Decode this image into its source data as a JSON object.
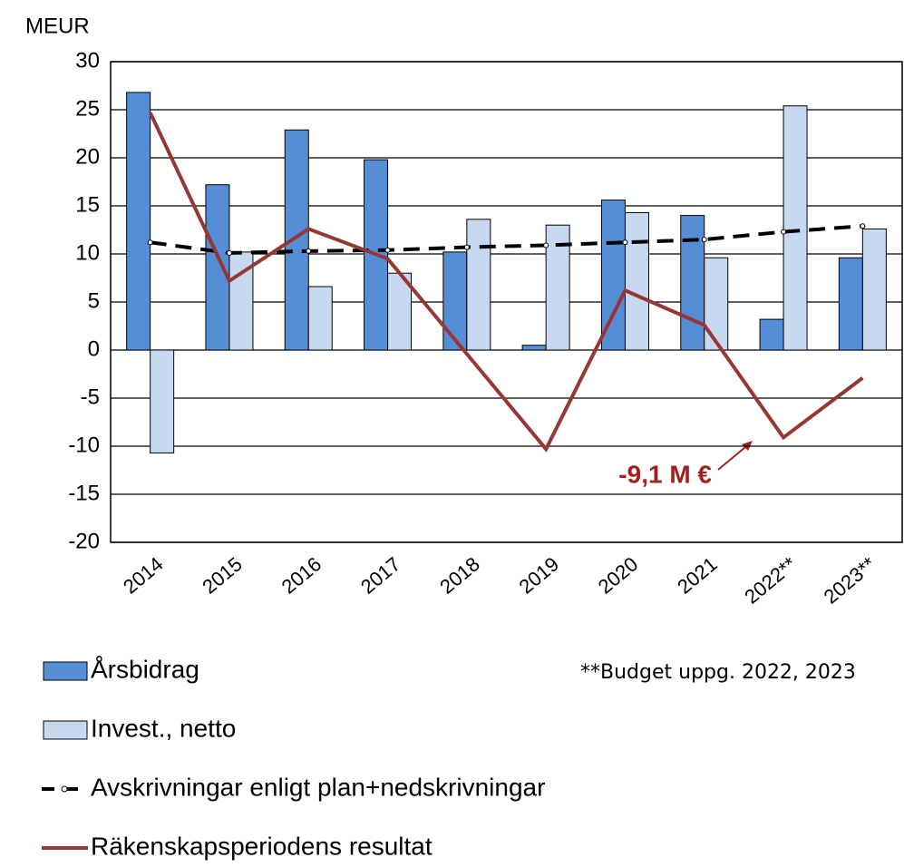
{
  "chart_data": {
    "type": "bar",
    "y_label": "MEUR",
    "categories": [
      "2014",
      "2015",
      "2016",
      "2017",
      "2018",
      "2019",
      "2020",
      "2021",
      "2022**",
      "2023**"
    ],
    "series": [
      {
        "name": "Årsbidrag",
        "type": "bar",
        "color": "#558ed5",
        "values": [
          26.8,
          17.2,
          22.9,
          19.8,
          10.2,
          0.5,
          15.6,
          14.0,
          3.2,
          9.6
        ]
      },
      {
        "name": "Invest., netto",
        "type": "bar",
        "color": "#c6d9f1",
        "values": [
          -10.7,
          10.2,
          6.6,
          8.0,
          13.6,
          13.0,
          14.3,
          9.6,
          25.4,
          12.6
        ]
      },
      {
        "name": "Avskrivningar enligt plan+nedskrivningar",
        "type": "line",
        "style": "dashed",
        "color": "#000000",
        "values": [
          11.2,
          10.1,
          10.3,
          10.4,
          10.7,
          10.9,
          11.2,
          11.5,
          12.3,
          12.9
        ]
      },
      {
        "name": "Räkenskapsperiodens resultat",
        "type": "line",
        "style": "solid",
        "color": "#953735",
        "values": [
          24.7,
          7.2,
          12.6,
          9.5,
          -0.4,
          -10.3,
          6.2,
          2.6,
          -9.1,
          -2.9
        ]
      }
    ],
    "annotation": "-9,1 M €",
    "note": "**Budget uppg. 2022, 2023",
    "ylim": [
      -20,
      30
    ],
    "yticks": [
      -20,
      -15,
      -10,
      -5,
      0,
      5,
      10,
      15,
      20,
      25,
      30
    ],
    "grid": true
  }
}
